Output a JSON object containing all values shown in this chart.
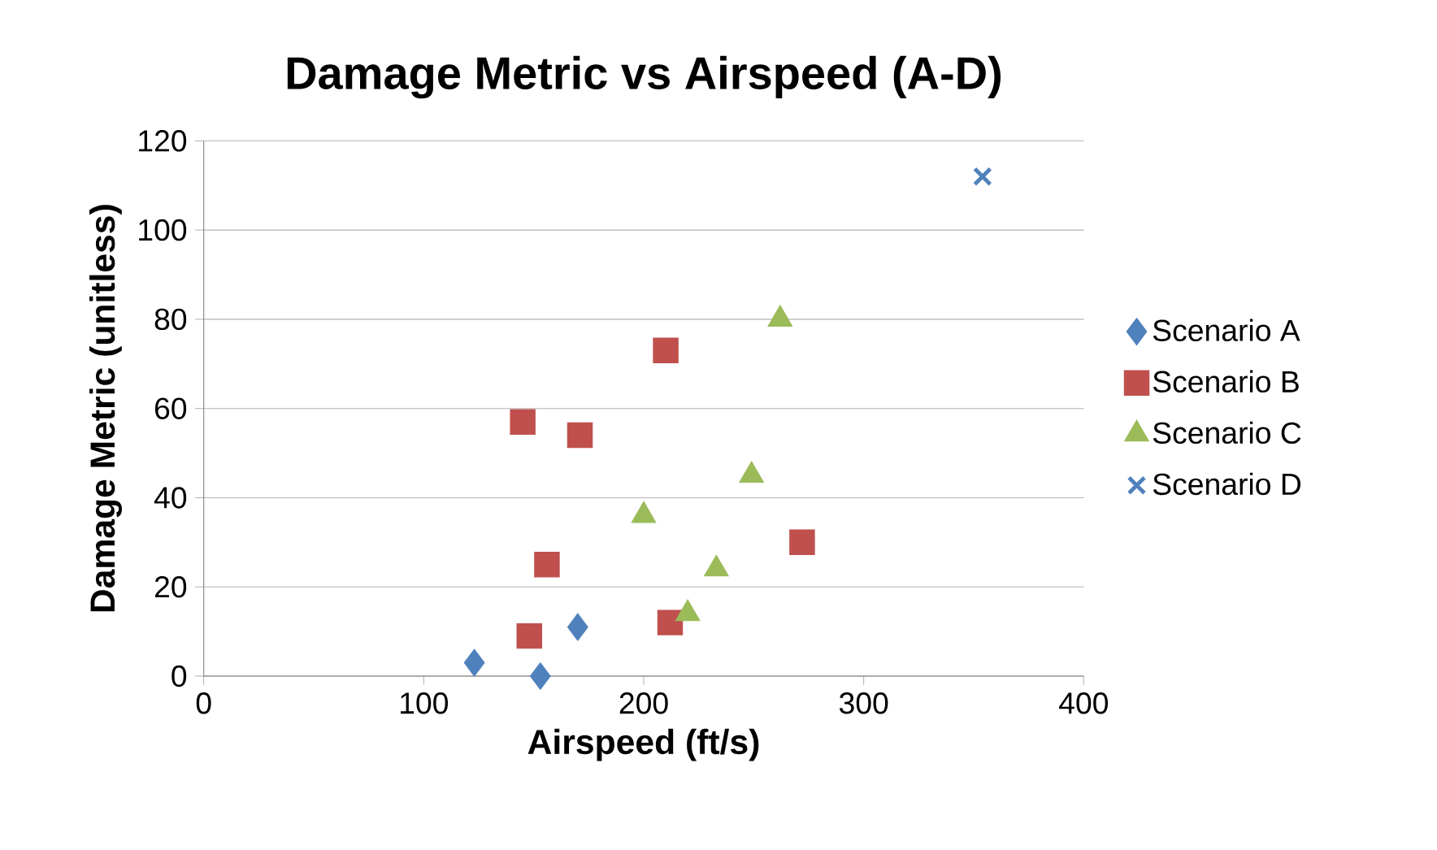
{
  "chart_data": {
    "type": "scatter",
    "title": "Damage Metric vs Airspeed (A-D)",
    "xlabel": "Airspeed (ft/s)",
    "ylabel": "Damage Metric (unitless)",
    "xlim": [
      0,
      400
    ],
    "xticks": [
      0,
      100,
      200,
      300,
      400
    ],
    "ylim": [
      0,
      120
    ],
    "yticks": [
      0,
      20,
      40,
      60,
      80,
      100,
      120
    ],
    "grid": "y",
    "legend": "right",
    "series": [
      {
        "name": "Scenario A",
        "color": "#4f81bd",
        "marker": "diamond",
        "x": [
          123,
          153,
          170
        ],
        "values": [
          3,
          0,
          11
        ]
      },
      {
        "name": "Scenario B",
        "color": "#c0504d",
        "marker": "square",
        "x": [
          145,
          171,
          210,
          156,
          148,
          212,
          272
        ],
        "values": [
          57,
          54,
          73,
          25,
          9,
          12,
          30
        ]
      },
      {
        "name": "Scenario C",
        "color": "#9bbb59",
        "marker": "triangle",
        "x": [
          262,
          249,
          200,
          233,
          220
        ],
        "values": [
          80,
          45,
          36,
          24,
          14
        ]
      },
      {
        "name": "Scenario D",
        "color": "#4f81bd",
        "marker": "cross",
        "x": [
          354
        ],
        "values": [
          112
        ]
      }
    ]
  }
}
